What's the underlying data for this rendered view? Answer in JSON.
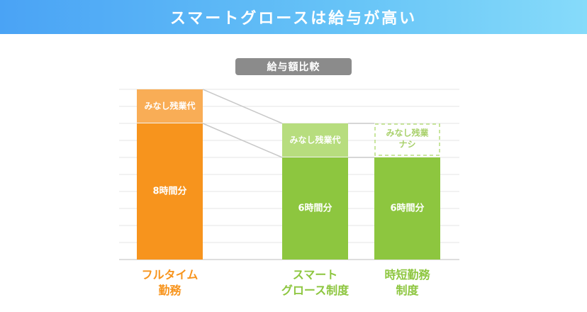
{
  "header": {
    "title": "スマートグロースは給与が高い"
  },
  "chart_data": {
    "type": "bar",
    "title": "給与額比較",
    "categories": [
      "フルタイム\n勤務",
      "スマート\nグロース制度",
      "時短勤務\n制度"
    ],
    "segments": [
      {
        "category": "フルタイム\n勤務",
        "base_label": "8時間分",
        "base": 8,
        "top_label": "みなし残業代",
        "top": 2,
        "top_style": "solid"
      },
      {
        "category": "スマート\nグロース制度",
        "base_label": "6時間分",
        "base": 6,
        "top_label": "みなし残業代",
        "top": 2,
        "top_style": "solid"
      },
      {
        "category": "時短勤務\n制度",
        "base_label": "6時間分",
        "base": 6,
        "top_label": "みなし残業\nナシ",
        "top": 2,
        "top_style": "dashed"
      }
    ],
    "ylim": [
      0,
      10
    ],
    "grid": true,
    "colors": {
      "orange_base": "#f7941d",
      "orange_top": "#f9ad56",
      "green_base": "#8dc63f",
      "green_top": "#b7dd7e",
      "dashed_border": "#b7dd7e",
      "dashed_text": "#a8d06a",
      "grid": "#e6e6e6",
      "connector": "#c8c8c8",
      "label_orange": "#f7941d",
      "label_green": "#8dc63f"
    }
  }
}
